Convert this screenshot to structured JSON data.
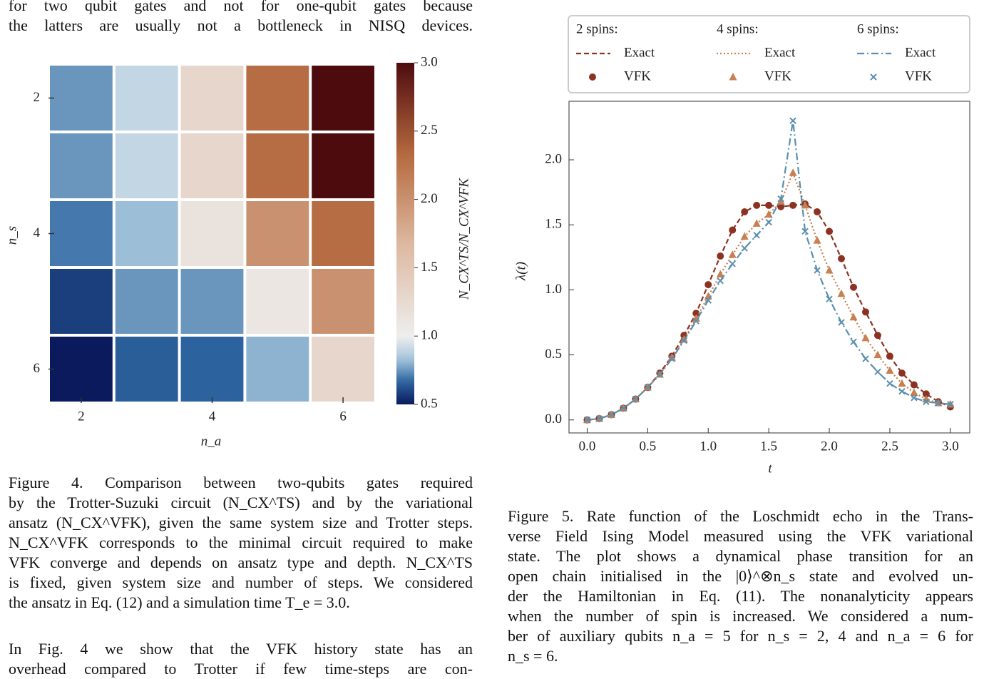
{
  "top_text": {
    "lines": [
      "for two qubit gates and not for one-qubit gates because",
      "the latters are usually not a bottleneck in NISQ devices."
    ]
  },
  "chart_data": [
    {
      "type": "heatmap",
      "x_label": "n_a",
      "y_label": "n_s",
      "colorbar_label": "N_CX^TS/N_CX^VFK",
      "categories": [
        2,
        null,
        4,
        null,
        6
      ],
      "rows": [
        2,
        null,
        4,
        null,
        6
      ],
      "values": [
        [
          0.75,
          0.9,
          1.3,
          2.3,
          3.0
        ],
        [
          0.75,
          0.9,
          1.3,
          2.3,
          3.0
        ],
        [
          0.7,
          0.82,
          1.15,
          2.0,
          2.3
        ],
        [
          0.58,
          0.75,
          0.75,
          1.1,
          2.0
        ],
        [
          0.5,
          0.65,
          0.66,
          0.8,
          1.3
        ]
      ],
      "clim": [
        0.5,
        3.0
      ],
      "cticks": [
        0.5,
        {
          "value": 1,
          "label": "1.0"
        },
        1.5,
        {
          "value": 2,
          "label": "2.0"
        },
        2.5,
        {
          "value": 3,
          "label": "3.0"
        }
      ],
      "cmap_center": 1,
      "cmap_low": [
        "#0a1a5c",
        "#2d65a0",
        "#a6c6dc",
        "#eeeeee"
      ],
      "cmap_high": [
        "#eeeeee",
        "#ddb9a0",
        "#b5693e",
        "#4e0b0e"
      ]
    },
    {
      "type": "line",
      "x_label": "t",
      "y_label": "λ(t)",
      "x": [
        0,
        0.1,
        0.2,
        0.3,
        0.4,
        0.5,
        0.6,
        0.7,
        0.8,
        0.9,
        1,
        1.1,
        1.2,
        1.3,
        1.4,
        1.5,
        1.6,
        1.7,
        1.8,
        1.9,
        2,
        2.1,
        2.2,
        2.3,
        2.4,
        2.5,
        2.6,
        2.7,
        2.8,
        2.9,
        3
      ],
      "xlim": [
        -0.15,
        3.16
      ],
      "ylim": [
        -0.1,
        2.45
      ],
      "xticks": [
        {
          "value": 0,
          "label": "0.0"
        },
        0.5,
        {
          "value": 1,
          "label": "1.0"
        },
        1.5,
        {
          "value": 2,
          "label": "2.0"
        },
        2.5,
        {
          "value": 3,
          "label": "3.0"
        }
      ],
      "yticks": [
        {
          "value": 0,
          "label": "0.0"
        },
        0.5,
        {
          "value": 1,
          "label": "1.0"
        },
        1.5,
        {
          "value": 2,
          "label": "2.0"
        }
      ],
      "series": [
        {
          "group": "2 spins:",
          "name": "Exact",
          "style": "dashed",
          "color": "#8b3222",
          "values": [
            0,
            0.01,
            0.04,
            0.09,
            0.16,
            0.25,
            0.36,
            0.49,
            0.65,
            0.82,
            1.04,
            1.26,
            1.46,
            1.6,
            1.65,
            1.65,
            1.64,
            1.65,
            1.66,
            1.6,
            1.45,
            1.24,
            1.02,
            0.83,
            0.65,
            0.49,
            0.36,
            0.27,
            0.2,
            0.14,
            0.1
          ]
        },
        {
          "group": "2 spins:",
          "name": "VFK",
          "marker": "circle",
          "color": "#8b3222",
          "values": [
            0,
            0.01,
            0.04,
            0.09,
            0.16,
            0.25,
            0.36,
            0.49,
            0.65,
            0.82,
            1.04,
            1.26,
            1.46,
            1.6,
            1.65,
            1.65,
            1.64,
            1.65,
            1.66,
            1.6,
            1.45,
            1.24,
            1.02,
            0.83,
            0.65,
            0.49,
            0.36,
            0.27,
            0.2,
            0.14,
            0.1
          ]
        },
        {
          "group": "4 spins:",
          "name": "Exact",
          "style": "dotted",
          "color": "#c87f52",
          "values": [
            0,
            0.01,
            0.04,
            0.09,
            0.16,
            0.25,
            0.35,
            0.48,
            0.62,
            0.78,
            0.95,
            1.12,
            1.27,
            1.41,
            1.51,
            1.58,
            1.68,
            1.9,
            1.65,
            1.38,
            1.15,
            0.97,
            0.79,
            0.63,
            0.5,
            0.38,
            0.28,
            0.21,
            0.16,
            0.13,
            0.12
          ]
        },
        {
          "group": "4 spins:",
          "name": "VFK",
          "marker": "triangle",
          "color": "#c87f52",
          "values": [
            0,
            0.01,
            0.04,
            0.09,
            0.16,
            0.25,
            0.35,
            0.48,
            0.62,
            0.78,
            0.95,
            1.12,
            1.27,
            1.41,
            1.51,
            1.58,
            1.68,
            1.9,
            1.65,
            1.38,
            1.15,
            0.97,
            0.79,
            0.63,
            0.5,
            0.38,
            0.28,
            0.21,
            0.16,
            0.13,
            0.12
          ]
        },
        {
          "group": "6 spins:",
          "name": "Exact",
          "style": "dashdot",
          "color": "#5b8fad",
          "values": [
            0,
            0.01,
            0.04,
            0.09,
            0.16,
            0.25,
            0.35,
            0.47,
            0.61,
            0.76,
            0.92,
            1.07,
            1.2,
            1.32,
            1.42,
            1.52,
            1.7,
            2.3,
            1.45,
            1.15,
            0.93,
            0.75,
            0.6,
            0.47,
            0.37,
            0.28,
            0.22,
            0.17,
            0.14,
            0.13,
            0.12
          ]
        },
        {
          "group": "6 spins:",
          "name": "VFK",
          "marker": "x",
          "color": "#5b8fad",
          "values": [
            0,
            0.01,
            0.04,
            0.09,
            0.16,
            0.25,
            0.35,
            0.47,
            0.61,
            0.76,
            0.92,
            1.07,
            1.2,
            1.32,
            1.42,
            1.52,
            1.7,
            2.3,
            1.45,
            1.15,
            0.93,
            0.75,
            0.6,
            0.47,
            0.37,
            0.28,
            0.22,
            0.17,
            0.14,
            0.13,
            0.12
          ]
        }
      ]
    }
  ],
  "figure4_caption": {
    "lines": [
      "Figure 4.  Comparison between two-qubits gates required",
      "by the Trotter-Suzuki circuit (N_CX^TS) and by the variational",
      "ansatz (N_CX^VFK), given the same system size and Trotter steps.",
      "N_CX^VFK corresponds to the minimal circuit required to make",
      "VFK converge and depends on ansatz type and depth.  N_CX^TS",
      "is fixed, given system size and number of steps.  We considered",
      "the ansatz in Eq. (12) and a simulation time T_e = 3.0."
    ]
  },
  "body_text": {
    "lines": [
      "In Fig. 4 we show that the VFK history state has an",
      "overhead compared to Trotter if few time-steps are con-"
    ]
  },
  "figure5_caption": {
    "lines": [
      "Figure 5. Rate function of the Loschmidt echo in the Trans-",
      "verse Field Ising Model measured using the VFK variational",
      "state.  The plot shows a dynamical phase transition for an",
      "open chain initialised in the |0⟩^⊗n_s state and evolved un-",
      "der the Hamiltonian in Eq. (11). The nonanalyticity appears",
      "when the number of spin is increased. We considered a num-",
      "ber of auxiliary qubits n_a = 5 for n_s = 2, 4 and n_a = 6 for",
      "n_s = 6."
    ]
  }
}
